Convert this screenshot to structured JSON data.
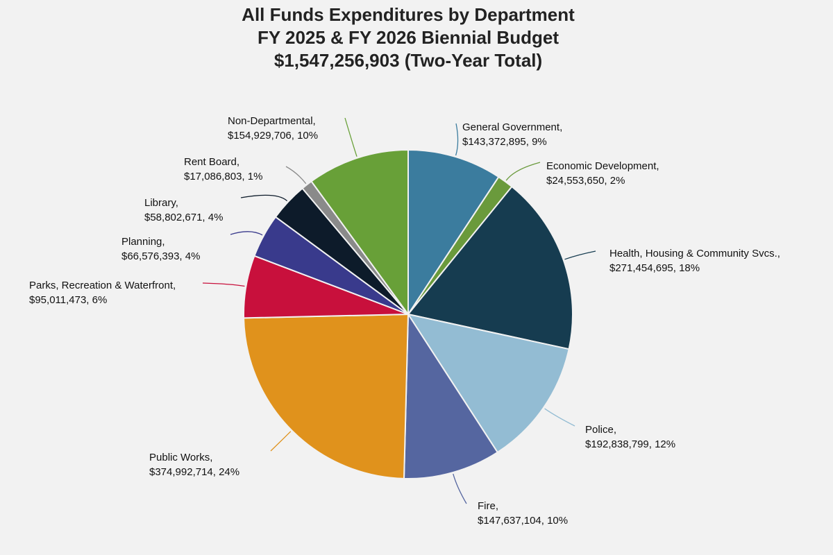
{
  "chart_data": {
    "type": "pie",
    "title": "All Funds Expenditures by Department",
    "subtitle": "FY 2025 & FY 2026 Biennial Budget",
    "total_label": "$1,547,256,903 (Two-Year Total)",
    "categories": [
      "General Government,",
      "Economic Development,",
      "Health, Housing & Community Svcs.,",
      "Police,",
      "Fire,",
      "Public Works,",
      "Parks, Recreation & Waterfront,",
      "Planning,",
      "Library,",
      "Rent Board,",
      "Non-Departmental,"
    ],
    "values": [
      143372895,
      24553650,
      271454695,
      192838799,
      147637104,
      374992714,
      95011473,
      66576393,
      58802671,
      17086803,
      154929706
    ],
    "value_labels": [
      "$143,372,895, 9%",
      "$24,553,650, 2%",
      "$271,454,695, 18%",
      "$192,838,799, 12%",
      "$147,637,104, 10%",
      "$374,992,714, 24%",
      "$95,011,473, 6%",
      "$66,576,393, 4%",
      "$58,802,671, 4%",
      "$17,086,803, 1%",
      "$154,929,706, 10%"
    ],
    "colors": [
      "#3b7c9e",
      "#6a9a3c",
      "#163c50",
      "#93bcd3",
      "#5566a0",
      "#e0921c",
      "#c8103c",
      "#393a8c",
      "#0d1b2a",
      "#8a8a8a",
      "#68a038"
    ]
  }
}
